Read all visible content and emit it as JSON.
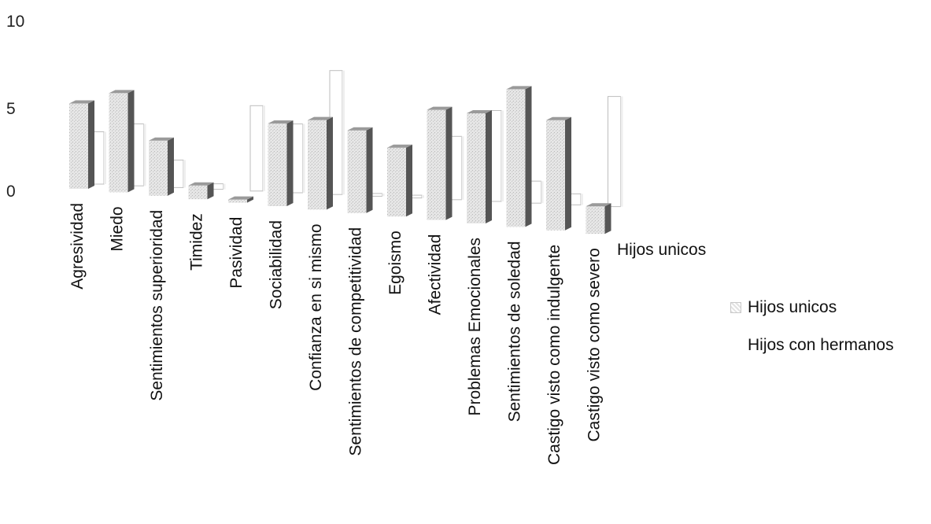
{
  "chart_data": {
    "type": "bar",
    "categories": [
      "Agresividad",
      "Miedo",
      "Sentimientos superioridad",
      "Timidez",
      "Pasividad",
      "Sociabilidad",
      "Confianza en si mismo",
      "Sentimientos de competitividad",
      "Egoismo",
      "Afectividad",
      "Problemas Emocionales",
      "Sentimientos de soledad",
      "Castigo visto como indulgente",
      "Castigo visto como severo"
    ],
    "series": [
      {
        "name": "Hijos unicos",
        "values": [
          6.2,
          7.2,
          4.0,
          1.0,
          0.2,
          6.0,
          6.5,
          6.0,
          5.0,
          8.0,
          8.0,
          10.0,
          8.0,
          2.0
        ]
      },
      {
        "name": "Hijos con hermanos",
        "values": [
          3.8,
          4.5,
          2.0,
          0.4,
          6.2,
          5.0,
          9.0,
          0.2,
          0.2,
          4.6,
          6.6,
          1.6,
          0.8,
          8.0
        ]
      }
    ],
    "yticks": [
      "0",
      "5",
      "10"
    ],
    "ylim": [
      0,
      10
    ],
    "depth_axis_label": "Hijos unicos",
    "legend_position": "right",
    "colors": {
      "series1_face": "#dcdcdc",
      "series1_side": "#555555",
      "series2_edge": "#bdbdbd"
    }
  },
  "legend": {
    "items": [
      "Hijos unicos",
      "Hijos con hermanos"
    ]
  }
}
